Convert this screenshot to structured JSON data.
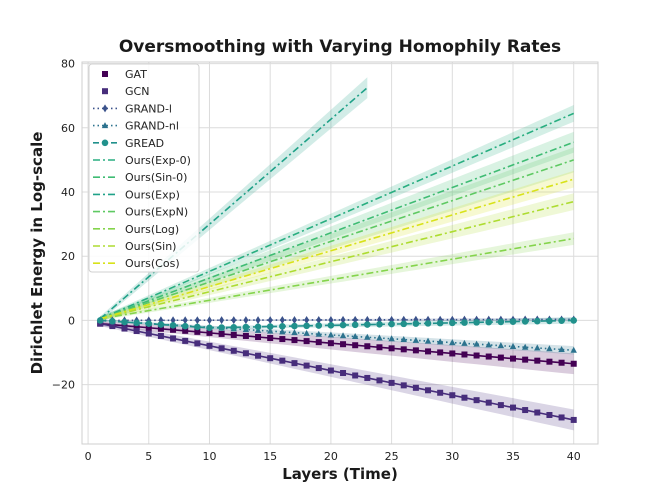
{
  "chart_data": {
    "type": "line",
    "title": "Oversmoothing with Varying Homophily Rates",
    "xlabel": "Layers (Time)",
    "ylabel": "Dirichlet Energy in Log-scale",
    "xlim": [
      -0.5,
      42
    ],
    "ylim": [
      -38.5,
      80.5
    ],
    "xticks": [
      0,
      5,
      10,
      15,
      20,
      25,
      30,
      35,
      40
    ],
    "yticks": [
      -20,
      0,
      20,
      40,
      60,
      80
    ],
    "grid": true,
    "legend_position": "top-left",
    "series": [
      {
        "name": "GAT",
        "color": "#440154",
        "marker": "square",
        "dash": "none",
        "x_start": 1,
        "x_end": 40,
        "y_start": -1,
        "y_end": -13.5,
        "band": 2.5
      },
      {
        "name": "GCN",
        "color": "#472d7b",
        "marker": "square",
        "dash": "none",
        "x_start": 1,
        "x_end": 40,
        "y_start": -1,
        "y_end": -31,
        "band": 2.5
      },
      {
        "name": "GRAND-l",
        "color": "#3b528b",
        "marker": "diamond",
        "dash": "dot",
        "x_start": 1,
        "x_end": 40,
        "y_start": 0,
        "y_end": 0.3,
        "band": 0.4
      },
      {
        "name": "GRAND-nl",
        "color": "#2c728e",
        "marker": "triangle",
        "dash": "dot",
        "x_start": 1,
        "x_end": 40,
        "y_start": 0,
        "y_end": -9.3,
        "band": 1
      },
      {
        "name": "GREAD",
        "color": "#21918c",
        "marker": "circle",
        "dash": "dash",
        "x_start": 1,
        "x_end": 40,
        "y_start": 0,
        "y_end": 0,
        "dip": -2.3,
        "band": 0.8
      },
      {
        "name": "Ours(Exp-0)",
        "color": "#28ae80",
        "marker": "none",
        "dash": "dashdot",
        "x_start": 1,
        "x_end": 40,
        "y_start": 0.5,
        "y_end": 64.5,
        "band": 2
      },
      {
        "name": "Ours(Sin-0)",
        "color": "#3fbc73",
        "marker": "none",
        "dash": "dashdot",
        "x_start": 1,
        "x_end": 40,
        "y_start": 0.5,
        "y_end": 55.5,
        "band": 2.5
      },
      {
        "name": "Ours(Exp)",
        "color": "#1fa188",
        "marker": "none",
        "dash": "dashdot",
        "x_start": 1,
        "x_end": 23,
        "y_start": 0.5,
        "y_end": 72.5,
        "band": 2.5
      },
      {
        "name": "Ours(ExpN)",
        "color": "#5ec962",
        "marker": "none",
        "dash": "dashdot",
        "x_start": 1,
        "x_end": 40,
        "y_start": 0.5,
        "y_end": 50,
        "band": 3
      },
      {
        "name": "Ours(Log)",
        "color": "#84d44b",
        "marker": "none",
        "dash": "dashdot",
        "x_start": 1,
        "x_end": 40,
        "y_start": 0.5,
        "y_end": 25.5,
        "band": 1.5
      },
      {
        "name": "Ours(Sin)",
        "color": "#addc30",
        "marker": "none",
        "dash": "dashdot",
        "x_start": 1,
        "x_end": 40,
        "y_start": 0.5,
        "y_end": 37,
        "band": 2
      },
      {
        "name": "Ours(Cos)",
        "color": "#d8e219",
        "marker": "none",
        "dash": "dashdot",
        "x_start": 1,
        "x_end": 40,
        "y_start": 0.5,
        "y_end": 44,
        "band": 2
      }
    ]
  }
}
